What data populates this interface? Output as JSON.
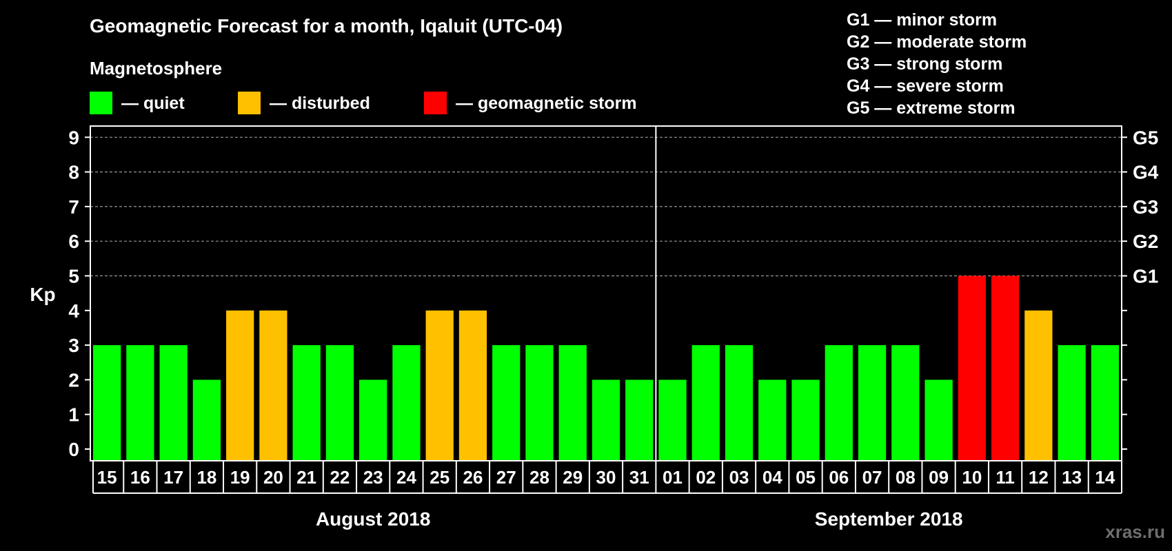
{
  "chart_data": {
    "type": "bar",
    "title": "Geomagnetic Forecast for a month, Iqaluit (UTC-04)",
    "ylabel": "Kp",
    "ylim": [
      0,
      9
    ],
    "yticks": [
      "0",
      "1",
      "2",
      "3",
      "4",
      "5",
      "6",
      "7",
      "8",
      "9"
    ],
    "right_axis_labels": [
      {
        "kp": 5,
        "label": "G1"
      },
      {
        "kp": 6,
        "label": "G2"
      },
      {
        "kp": 7,
        "label": "G3"
      },
      {
        "kp": 8,
        "label": "G4"
      },
      {
        "kp": 9,
        "label": "G5"
      }
    ],
    "grid": true,
    "categories": [
      "15",
      "16",
      "17",
      "18",
      "19",
      "20",
      "21",
      "22",
      "23",
      "24",
      "25",
      "26",
      "27",
      "28",
      "29",
      "30",
      "31",
      "01",
      "02",
      "03",
      "04",
      "05",
      "06",
      "07",
      "08",
      "09",
      "10",
      "11",
      "12",
      "13",
      "14"
    ],
    "values": [
      3,
      3,
      3,
      2,
      4,
      4,
      3,
      3,
      2,
      3,
      4,
      4,
      3,
      3,
      3,
      2,
      2,
      2,
      3,
      3,
      2,
      2,
      3,
      3,
      3,
      2,
      5,
      5,
      4,
      3,
      3
    ],
    "status": [
      "quiet",
      "quiet",
      "quiet",
      "quiet",
      "disturbed",
      "disturbed",
      "quiet",
      "quiet",
      "quiet",
      "quiet",
      "disturbed",
      "disturbed",
      "quiet",
      "quiet",
      "quiet",
      "quiet",
      "quiet",
      "quiet",
      "quiet",
      "quiet",
      "quiet",
      "quiet",
      "quiet",
      "quiet",
      "quiet",
      "quiet",
      "storm",
      "storm",
      "disturbed",
      "quiet",
      "quiet"
    ],
    "months": [
      {
        "label": "August 2018",
        "start_index": 0,
        "end_index": 16
      },
      {
        "label": "September 2018",
        "start_index": 17,
        "end_index": 30
      }
    ],
    "legend_heading": "Magnetosphere",
    "legend": [
      {
        "key": "quiet",
        "label": "— quiet",
        "color": "#00ff00"
      },
      {
        "key": "disturbed",
        "label": "— disturbed",
        "color": "#ffc000"
      },
      {
        "key": "storm",
        "label": "— geomagnetic storm",
        "color": "#ff0000"
      }
    ],
    "storm_scale": [
      "G1 — minor storm",
      "G2 — moderate storm",
      "G3 — strong storm",
      "G4 — severe storm",
      "G5 — extreme storm"
    ]
  },
  "watermark": "xras.ru",
  "colors": {
    "background": "#000000",
    "foreground": "#ffffff",
    "grid": "#9a9a9a",
    "watermark": "#6e6e6e"
  }
}
